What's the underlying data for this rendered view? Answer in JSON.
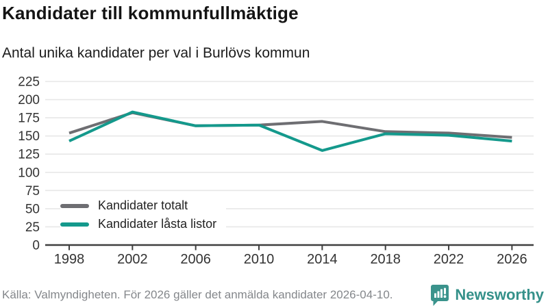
{
  "header": {
    "title": "Kandidater till kommunfullmäktige",
    "subtitle": "Antal unika kandidater per val i Burlövs kommun"
  },
  "footer": {
    "source": "Källa: Valmyndigheten. För 2026 gäller det anmälda kandidater 2026-04-10.",
    "brand": "Newsworthy"
  },
  "colors": {
    "total_line": "#6e6e72",
    "locked_line": "#14998c",
    "grid": "#e7e7e7",
    "axis": "#3f3f3f",
    "tick_text": "#333333",
    "brand": "#35918a"
  },
  "chart_data": {
    "type": "line",
    "categories": [
      "1998",
      "2002",
      "2006",
      "2010",
      "2014",
      "2018",
      "2022",
      "2026"
    ],
    "series": [
      {
        "name": "Kandidater totalt",
        "color": "#6e6e72",
        "values": [
          154,
          182,
          164,
          165,
          170,
          156,
          154,
          148
        ]
      },
      {
        "name": "Kandidater låsta listor",
        "color": "#14998c",
        "values": [
          143,
          183,
          164,
          165,
          130,
          153,
          151,
          143
        ]
      }
    ],
    "title": "Kandidater till kommunfullmäktige",
    "subtitle": "Antal unika kandidater per val i Burlövs kommun",
    "xlabel": "",
    "ylabel": "",
    "ylim": [
      0,
      225
    ],
    "yticks": [
      0,
      25,
      50,
      75,
      100,
      125,
      150,
      175,
      200,
      225
    ],
    "grid": true,
    "legend_position": "inside-bottom-left"
  }
}
